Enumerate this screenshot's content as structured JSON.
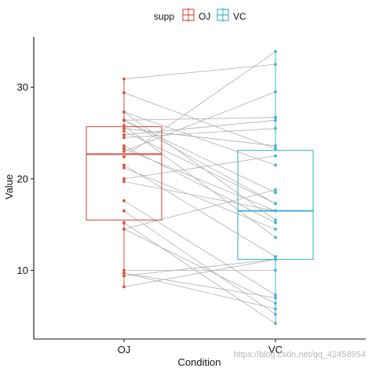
{
  "chart_data": {
    "type": "boxplot",
    "xlabel": "Condition",
    "ylabel": "Value",
    "categories": [
      "OJ",
      "VC"
    ],
    "ylim": [
      2.5,
      35.5
    ],
    "yticks": [
      10,
      20,
      30
    ],
    "grid": false,
    "legend": {
      "title": "supp",
      "position": "top",
      "entries": [
        {
          "label": "OJ",
          "color": "#d9533f"
        },
        {
          "label": "VC",
          "color": "#3fb5cf"
        }
      ]
    },
    "boxes": [
      {
        "category": "OJ",
        "color": "#d9533f",
        "min": 8.2,
        "q1": 15.5,
        "median": 22.7,
        "q3": 25.7,
        "max": 30.9
      },
      {
        "category": "VC",
        "color": "#3fb5cf",
        "min": 4.2,
        "q1": 11.2,
        "median": 16.5,
        "q3": 23.1,
        "max": 33.9
      }
    ],
    "pairs": {
      "OJ": [
        15.2,
        21.5,
        17.6,
        9.7,
        14.5,
        10.0,
        8.2,
        9.4,
        16.5,
        9.7,
        19.7,
        23.3,
        23.6,
        26.4,
        20.0,
        25.2,
        25.8,
        21.2,
        14.5,
        27.3,
        25.5,
        26.4,
        22.4,
        24.5,
        24.8,
        30.9,
        26.4,
        27.3,
        29.4,
        23.0
      ],
      "VC": [
        4.2,
        11.5,
        7.3,
        5.8,
        6.4,
        10.0,
        11.2,
        11.2,
        5.2,
        7.0,
        16.5,
        16.5,
        15.2,
        17.3,
        22.5,
        17.3,
        13.6,
        14.5,
        18.8,
        15.5,
        23.6,
        18.5,
        33.9,
        25.5,
        26.4,
        32.5,
        26.7,
        21.5,
        23.3,
        29.5
      ]
    }
  },
  "watermark": "https://blog.csdn.net/qq_42458954"
}
